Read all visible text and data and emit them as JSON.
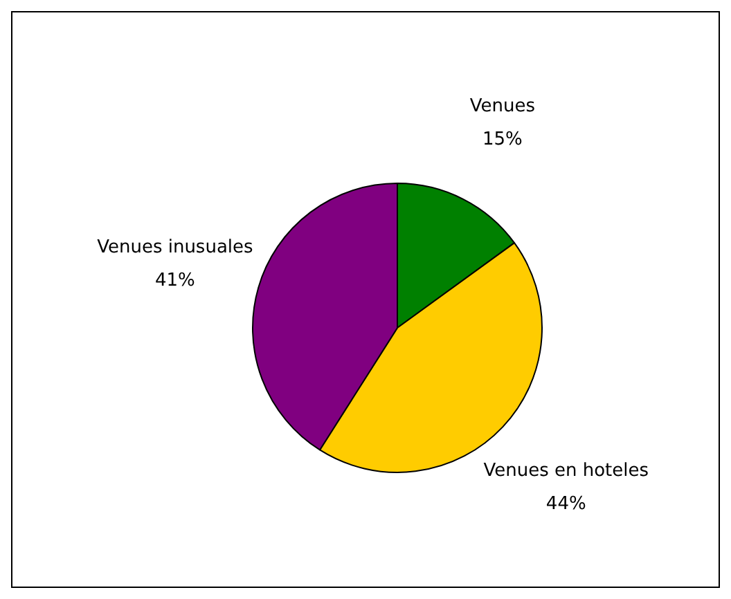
{
  "chart_data": {
    "type": "pie",
    "categories": [
      "Venues",
      "Venues en hoteles",
      "Venues inusuales"
    ],
    "values": [
      15,
      44,
      41
    ],
    "colors": [
      "#008000",
      "#ffcc00",
      "#800080"
    ],
    "value_labels": [
      "15%",
      "44%",
      "41%"
    ],
    "legend": false
  }
}
